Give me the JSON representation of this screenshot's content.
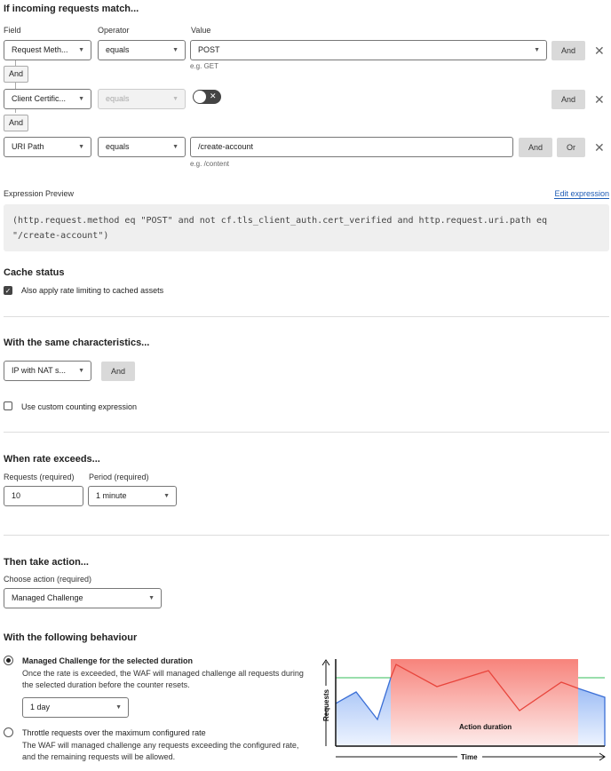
{
  "match": {
    "heading": "If incoming requests match...",
    "col_field": "Field",
    "col_operator": "Operator",
    "col_value": "Value",
    "rows": [
      {
        "field": "Request Meth...",
        "operator": "equals",
        "value": "POST",
        "hint": "e.g. GET"
      },
      {
        "field": "Client Certific...",
        "operator": "equals",
        "toggle": "off"
      },
      {
        "field": "URI Path",
        "operator": "equals",
        "value": "/create-account",
        "hint": "e.g. /content"
      }
    ],
    "and_label": "And",
    "or_label": "Or"
  },
  "expression": {
    "label": "Expression Preview",
    "edit_link": "Edit expression",
    "text": "(http.request.method eq \"POST\" and not cf.tls_client_auth.cert_verified and http.request.uri.path eq \"/create-account\")"
  },
  "cache": {
    "heading": "Cache status",
    "checkbox_label": "Also apply rate limiting to cached assets",
    "checked": true
  },
  "characteristics": {
    "heading": "With the same characteristics...",
    "select": "IP with NAT s...",
    "and_label": "And",
    "custom_label": "Use custom counting expression",
    "custom_checked": false
  },
  "rate": {
    "heading": "When rate exceeds...",
    "requests_label": "Requests (required)",
    "requests_value": "10",
    "period_label": "Period (required)",
    "period_value": "1 minute"
  },
  "action": {
    "heading": "Then take action...",
    "choose_label": "Choose action (required)",
    "value": "Managed Challenge"
  },
  "behaviour": {
    "heading": "With the following behaviour",
    "opt1_title": "Managed Challenge for the selected duration",
    "opt1_desc": "Once the rate is exceeded, the WAF will managed challenge all requests during the selected duration before the counter resets.",
    "duration": "1 day",
    "opt2_title": "Throttle requests over the maximum configured rate",
    "opt2_desc": "The WAF will managed challenge any requests exceeding the configured rate, and the remaining requests will be allowed.",
    "selected": 1
  },
  "diagram": {
    "y_label": "Requests",
    "x_label": "Time",
    "region_label": "Action duration",
    "colors": {
      "blue": "#3b6fd6",
      "red": "#e8453c",
      "green": "#5cc97a",
      "region": "#f7837b"
    }
  }
}
